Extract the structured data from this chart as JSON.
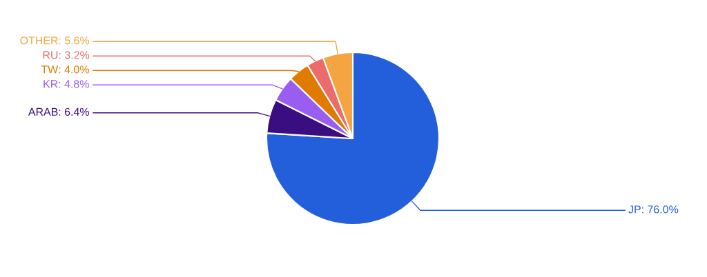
{
  "chart_data": {
    "type": "pie",
    "categories": [
      "JP",
      "ARAB",
      "KR",
      "TW",
      "RU",
      "OTHER"
    ],
    "values": [
      76.0,
      6.4,
      4.8,
      4.0,
      3.2,
      5.6
    ],
    "value_labels": [
      ": 76.0%",
      ": 6.4%",
      ": 4.8%",
      ": 4.0%",
      ": 3.2%",
      ": 5.6%"
    ],
    "colors": [
      "#245fdb",
      "#3a0e80",
      "#9b5cf0",
      "#e07b00",
      "#ec6b6b",
      "#f5a442"
    ],
    "legend": false
  }
}
